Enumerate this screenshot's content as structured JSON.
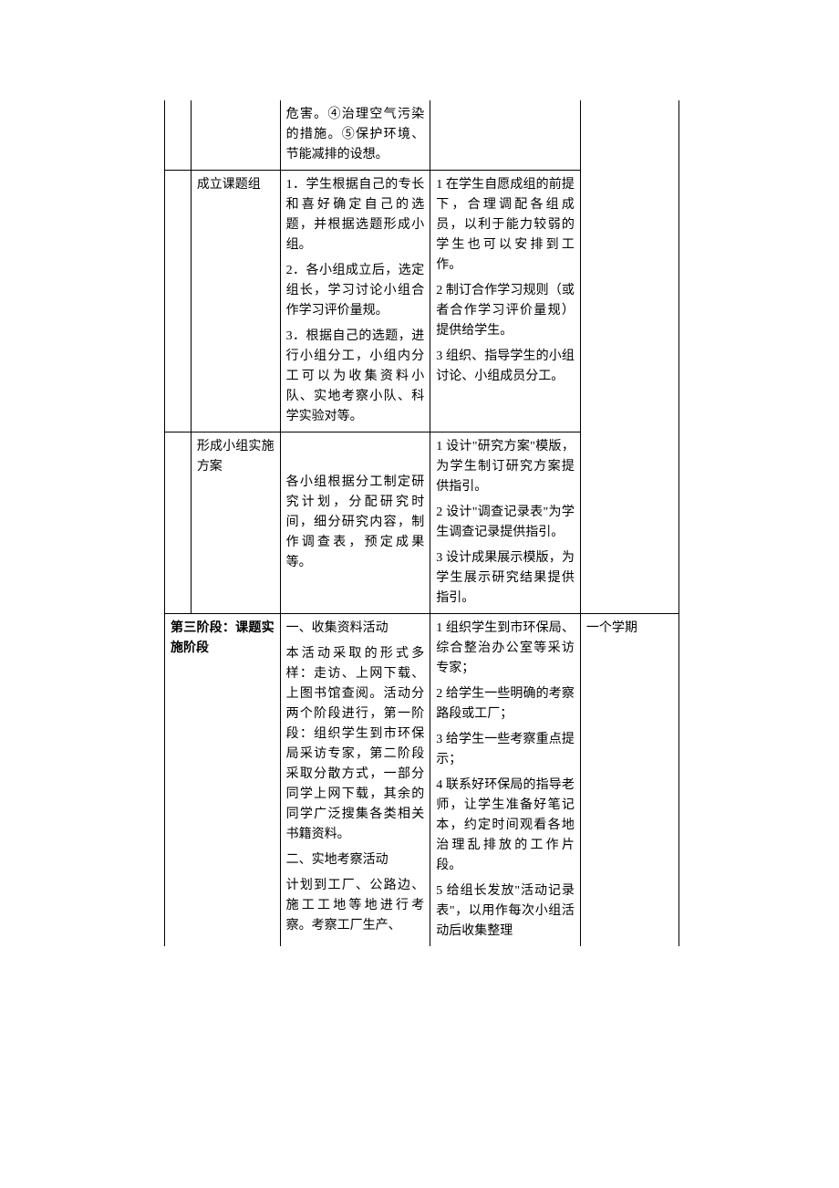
{
  "table": {
    "rows": [
      {
        "col1": "",
        "col2": "",
        "col3": "危害。④治理空气污染的措施。⑤保护环境、节能减排的设想。",
        "col4": "",
        "col5": "",
        "top_open": true,
        "col5_bottom_open": true
      },
      {
        "col1": "",
        "col2": "成立课题组",
        "col3_paras": [
          "1．学生根据自己的专长和喜好确定自己的选题，并根据选题形成小组。",
          "2．各小组成立后，选定组长，学习讨论小组合作学习评价量规。",
          "3．根据自己的选题，进行小组分工，小组内分工可以为收集资料小队、实地考察小队、科学实验对等。"
        ],
        "col4_paras": [
          "1 在学生自愿成组的前提下，合理调配各组成员，以利于能力较弱的学生也可以安排到工作。",
          "2 制订合作学习规则（或者合作学习评价量规）提供给学生。",
          "3 组织、指导学生的小组讨论、小组成员分工。"
        ],
        "col5": "",
        "col5_top_open": true,
        "col5_bottom_open": true
      },
      {
        "col1": "",
        "col2": "形成小组实施方案",
        "col3_paras": [
          "各小组根据分工制定研究计划，分配研究时间，细分研究内容，制作调查表，预定成果等。"
        ],
        "col3_valign": "middle",
        "col4_paras": [
          "1 设计\"研究方案\"模版，为学生制订研究方案提供指引。",
          "2 设计\"调查记录表\"为学生调查记录提供指引。",
          "3 设计成果展示模版，为学生展示研究结果提供指引。"
        ],
        "col5": "",
        "col5_top_open": true
      },
      {
        "col1_2_merged": true,
        "col1_2_text": "第三阶段：课题实施阶段",
        "bold": true,
        "col3_paras": [
          "一、收集资料活动",
          "本活动采取的形式多样：走访、上网下载、上图书馆查阅。活动分两个阶段进行，第一阶段：组织学生到市环保局采访专家，第二阶段采取分散方式，一部分同学上网下载，其余的同学广泛搜集各类相关书籍资料。",
          "二、实地考察活动",
          "计划到工厂、公路边、施工工地等地进行考察。考察工厂生产、"
        ],
        "col4_paras": [
          "1 组织学生到市环保局、综合整治办公室等采访专家；",
          "2 给学生一些明确的考察路段或工厂；",
          "3 给学生一些考察重点提示；",
          "4 联系好环保局的指导老师，让学生准备好笔记本，约定时间观看各地治理乱排放的工作片段。",
          "5 给组长发放\"活动记录表\"，以用作每次小组活动后收集整理"
        ],
        "col5": "一个学期",
        "bottom_open": true
      }
    ]
  }
}
